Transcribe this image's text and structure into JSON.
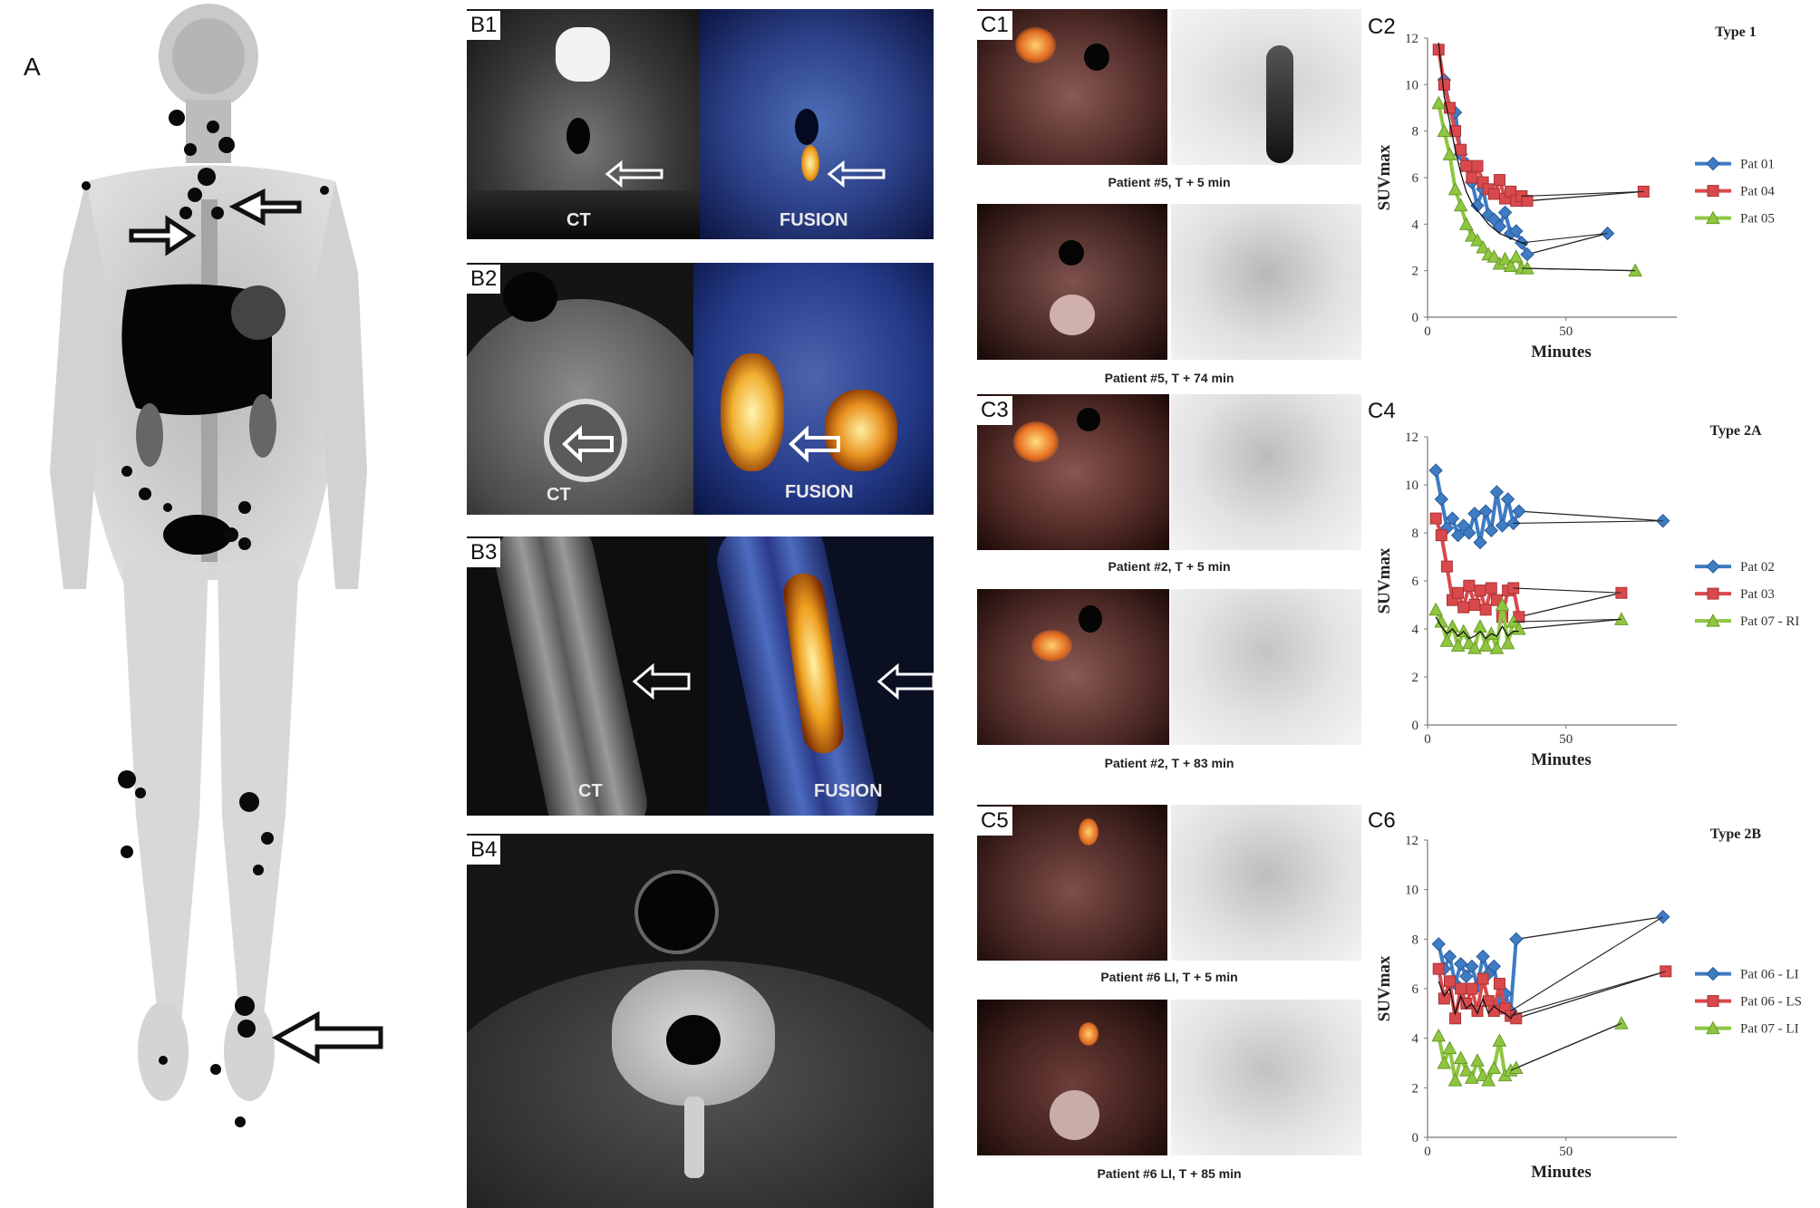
{
  "panels": {
    "A": "A",
    "B1": "B1",
    "B2": "B2",
    "B3": "B3",
    "B4": "B4",
    "C1": "C1",
    "C2": "C2",
    "C3": "C3",
    "C4": "C4",
    "C5": "C5",
    "C6": "C6"
  },
  "image_labels": {
    "b1_ct": "CT",
    "b1_fusion": "FUSION",
    "b2_ct": "CT",
    "b2_fusion": "FUSION",
    "b3_ct": "CT",
    "b3_fusion": "FUSION"
  },
  "captions": {
    "c1_top": "Patient #5, T + 5 min",
    "c1_bottom": "Patient #5, T + 74 min",
    "c3_top": "Patient #2, T + 5 min",
    "c3_bottom": "Patient #2, T + 83 min",
    "c5_top": "Patient #6 LI, T + 5 min",
    "c5_bottom": "Patient #6 LI, T + 85 min"
  },
  "colors": {
    "blue": "#3e7cc4",
    "red": "#d9494c",
    "green": "#8fc640",
    "black_line": "#111111"
  },
  "chart_data": [
    {
      "type": "line",
      "title": "Type 1",
      "xlabel": "Minutes",
      "ylabel": "SUVmax",
      "xlim": [
        0,
        90
      ],
      "ylim": [
        0,
        12
      ],
      "yticks": [
        0,
        2,
        4,
        6,
        8,
        10,
        12
      ],
      "xticks": [
        0,
        50
      ],
      "legend_position": "right",
      "series": [
        {
          "name": "Pat 01",
          "color": "blue",
          "marker": "diamond",
          "x": [
            6,
            8,
            10,
            12,
            14,
            16,
            18,
            20,
            22,
            24,
            26,
            28,
            30,
            32,
            34,
            36,
            65
          ],
          "y": [
            10.2,
            9,
            8.8,
            7,
            6.6,
            5.8,
            4.8,
            5.5,
            4.4,
            4.2,
            3.9,
            4.5,
            3.6,
            3.7,
            3.2,
            2.7,
            3.6
          ]
        },
        {
          "name": "Pat 04",
          "color": "red",
          "marker": "square",
          "x": [
            4,
            6,
            8,
            10,
            12,
            14,
            16,
            18,
            20,
            22,
            24,
            26,
            28,
            30,
            32,
            34,
            36,
            78
          ],
          "y": [
            11.5,
            10,
            9,
            8,
            7.2,
            6.5,
            6,
            6.5,
            5.8,
            5.5,
            5.3,
            5.9,
            5.1,
            5.4,
            5,
            5.2,
            5,
            5.4
          ]
        },
        {
          "name": "Pat 05",
          "color": "green",
          "marker": "triangle",
          "x": [
            4,
            6,
            8,
            10,
            12,
            14,
            16,
            18,
            20,
            22,
            24,
            26,
            28,
            30,
            32,
            34,
            36,
            75
          ],
          "y": [
            9.2,
            8,
            7,
            5.5,
            4.8,
            4,
            3.5,
            3.3,
            3,
            2.7,
            2.6,
            2.3,
            2.5,
            2.2,
            2.6,
            2.1,
            2.1,
            2
          ]
        }
      ],
      "trend": {
        "x": [
          4,
          6,
          8,
          10,
          12,
          14,
          16,
          18,
          20,
          22,
          24,
          26,
          28,
          30,
          32,
          34,
          36
        ],
        "y": [
          11.8,
          9.5,
          8.4,
          7.2,
          6.2,
          5.4,
          4.9,
          4.6,
          4.3,
          4,
          3.8,
          3.6,
          3.5,
          3.4,
          3.3,
          3.2,
          3.1
        ]
      }
    },
    {
      "type": "line",
      "title": "Type 2A",
      "xlabel": "Minutes",
      "ylabel": "SUVmax",
      "xlim": [
        0,
        90
      ],
      "ylim": [
        0,
        12
      ],
      "yticks": [
        0,
        2,
        4,
        6,
        8,
        10,
        12
      ],
      "xticks": [
        0,
        50
      ],
      "legend_position": "right",
      "series": [
        {
          "name": "Pat 02",
          "color": "blue",
          "marker": "diamond",
          "x": [
            3,
            5,
            7,
            9,
            11,
            13,
            15,
            17,
            19,
            21,
            23,
            25,
            27,
            29,
            31,
            33,
            85
          ],
          "y": [
            10.6,
            9.4,
            8.2,
            8.6,
            7.9,
            8.3,
            8,
            8.8,
            7.6,
            8.9,
            8.1,
            9.7,
            8.3,
            9.4,
            8.4,
            8.9,
            8.5
          ]
        },
        {
          "name": "Pat 03",
          "color": "red",
          "marker": "square",
          "x": [
            3,
            5,
            7,
            9,
            11,
            13,
            15,
            17,
            19,
            21,
            23,
            25,
            27,
            29,
            31,
            33,
            70
          ],
          "y": [
            8.6,
            7.9,
            6.6,
            5.2,
            5.5,
            4.9,
            5.8,
            5,
            5.6,
            4.8,
            5.7,
            5.2,
            4.5,
            5.6,
            5.7,
            4.5,
            5.5
          ]
        },
        {
          "name": "Pat 07 - RI",
          "color": "green",
          "marker": "triangle",
          "x": [
            3,
            5,
            7,
            9,
            11,
            13,
            15,
            17,
            19,
            21,
            23,
            25,
            27,
            29,
            31,
            33,
            70
          ],
          "y": [
            4.8,
            4.3,
            3.5,
            4.1,
            3.3,
            3.9,
            3.4,
            3.2,
            4.1,
            3.3,
            3.8,
            3.2,
            5,
            3.4,
            4.3,
            4,
            4.4
          ]
        }
      ],
      "trend": {
        "x": [
          3,
          5,
          7,
          9,
          11,
          13,
          15,
          17,
          19,
          21,
          23,
          25,
          27,
          29,
          31,
          33
        ],
        "y": [
          4.5,
          4.1,
          3.8,
          4,
          3.7,
          3.9,
          3.6,
          3.7,
          3.9,
          3.6,
          3.8,
          3.7,
          4.1,
          3.7,
          3.9,
          3.9
        ]
      }
    },
    {
      "type": "line",
      "title": "Type 2B",
      "xlabel": "Minutes",
      "ylabel": "SUVmax",
      "xlim": [
        0,
        90
      ],
      "ylim": [
        0,
        12
      ],
      "yticks": [
        0,
        2,
        4,
        6,
        8,
        10,
        12
      ],
      "xticks": [
        0,
        50
      ],
      "legend_position": "right",
      "series": [
        {
          "name": "Pat 06  - LI",
          "color": "blue",
          "marker": "diamond",
          "x": [
            4,
            6,
            8,
            10,
            12,
            14,
            16,
            18,
            20,
            22,
            24,
            26,
            28,
            30,
            32,
            85
          ],
          "y": [
            7.8,
            6.8,
            7.3,
            6.2,
            7,
            6.5,
            6.9,
            6.1,
            7.3,
            6.6,
            6.9,
            5.5,
            5.8,
            5.1,
            8,
            8.9
          ]
        },
        {
          "name": "Pat 06  - LS",
          "color": "red",
          "marker": "square",
          "x": [
            4,
            6,
            8,
            10,
            12,
            14,
            16,
            18,
            20,
            22,
            24,
            26,
            28,
            30,
            32,
            86
          ],
          "y": [
            6.8,
            5.6,
            6.3,
            4.8,
            6,
            5.4,
            6,
            5.1,
            6.4,
            5.5,
            5.1,
            6.2,
            5.2,
            4.9,
            4.8,
            6.7
          ]
        },
        {
          "name": "Pat 07  - LI",
          "color": "green",
          "marker": "triangle",
          "x": [
            4,
            6,
            8,
            10,
            12,
            14,
            16,
            18,
            20,
            22,
            24,
            26,
            28,
            30,
            32,
            70
          ],
          "y": [
            4.1,
            3,
            3.6,
            2.3,
            3.2,
            2.7,
            2.4,
            3.1,
            2.5,
            2.3,
            2.8,
            3.9,
            2.5,
            2.7,
            2.8,
            4.6
          ]
        }
      ],
      "trend": {
        "x": [
          4,
          6,
          8,
          10,
          12,
          14,
          16,
          18,
          20,
          22,
          24,
          26,
          28,
          30,
          32
        ],
        "y": [
          6.3,
          5.7,
          6,
          5,
          5.7,
          5.2,
          5.4,
          5,
          5.6,
          5,
          5.3,
          5.1,
          5,
          4.8,
          5.1
        ]
      }
    }
  ]
}
